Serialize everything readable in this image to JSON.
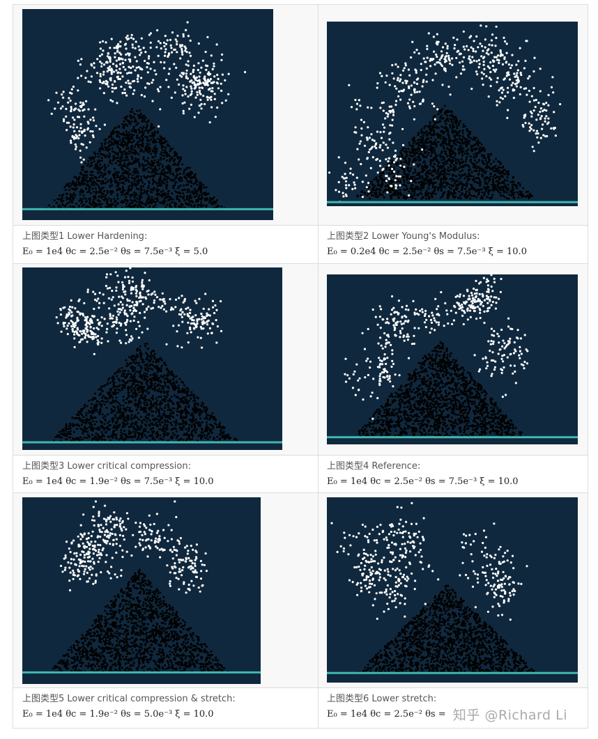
{
  "colors": {
    "background": "#10283d",
    "particle_light": "#ffffff",
    "particle_dark": "#000000",
    "ground": "#3fb9b0"
  },
  "panels": [
    {
      "caption": "上图类型1 Lower Hardening:",
      "formula": "E₀ = 1e4  θc = 2.5e⁻²  θs = 7.5e⁻³   ξ = 5.0"
    },
    {
      "caption": "上图类型2 Lower Young's Modulus:",
      "formula": "E₀ = 0.2e4  θc = 2.5e⁻²  θs = 7.5e⁻³   ξ = 10.0"
    },
    {
      "caption": "上图类型3 Lower critical compression:",
      "formula": "E₀ = 1e4  θc = 1.9e⁻²  θs = 7.5e⁻³   ξ = 10.0"
    },
    {
      "caption": "上图类型4 Reference:",
      "formula": "E₀ = 1e4  θc = 2.5e⁻²  θs = 7.5e⁻³   ξ = 10.0"
    },
    {
      "caption": "上图类型5 Lower critical compression & stretch:",
      "formula": "E₀ = 1e4  θc = 1.9e⁻²  θs = 5.0e⁻³   ξ = 10.0"
    },
    {
      "caption": "上图类型6 Lower stretch:",
      "formula": "E₀ = 1e4  θc = 2.5e⁻²  θs = "
    }
  ],
  "watermark": "知乎 @Richard Li"
}
